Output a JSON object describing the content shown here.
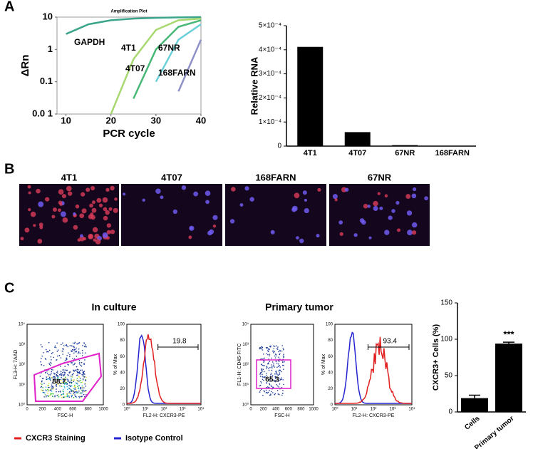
{
  "panel_labels": [
    "A",
    "B",
    "C"
  ],
  "chart_data": [
    {
      "type": "line",
      "title": "Amplification Plot",
      "ylabel": "ΔRn",
      "xlabel": "PCR cycle",
      "x": [
        10,
        15,
        20,
        25,
        30,
        35,
        40
      ],
      "xlim": [
        8,
        40
      ],
      "xticks": [
        10,
        20,
        30,
        40
      ],
      "ylim": [
        0.01,
        10
      ],
      "log_y": true,
      "yticks": [
        10,
        1,
        0.1,
        {
          "value": 0.01,
          "label": "0.0 1"
        }
      ],
      "series": [
        {
          "name": "GAPDH",
          "color": "#3aa58a",
          "values": [
            3,
            6,
            8,
            9,
            9.5,
            9.8,
            10
          ]
        },
        {
          "name": "4T1",
          "color": "#a8d870",
          "values": [
            null,
            null,
            0.01,
            0.5,
            4,
            8,
            9
          ]
        },
        {
          "name": "4T07",
          "color": "#48b878",
          "values": [
            null,
            null,
            null,
            0.03,
            1,
            5,
            8
          ]
        },
        {
          "name": "67NR",
          "color": "#6ad0d8",
          "values": [
            null,
            null,
            null,
            null,
            0.1,
            2,
            6
          ]
        },
        {
          "name": "168FARN",
          "color": "#8e90c8",
          "values": [
            null,
            null,
            null,
            null,
            null,
            0.05,
            2
          ]
        }
      ]
    },
    {
      "type": "bar",
      "ylabel": "Relative RNA",
      "categories": [
        "4T1",
        "4T07",
        "67NR",
        "168FARN"
      ],
      "values": [
        0.000412,
        5.8e-05,
        4e-06,
        1e-06
      ],
      "color": "#000000",
      "ylim": [
        0,
        0.0005
      ],
      "yticks": [
        0,
        {
          "value": 0.0001,
          "label": "1×10⁻⁴"
        },
        {
          "value": 0.0002,
          "label": "2×10⁻⁴"
        },
        {
          "value": 0.0003,
          "label": "3×10⁻⁴"
        },
        {
          "value": 0.0004,
          "label": "4×10⁻⁴"
        },
        {
          "value": 0.0005,
          "label": "5×10⁻⁴"
        }
      ]
    },
    {
      "type": "bar",
      "ylabel": "CXCR3+ Cells (%)",
      "categories": [
        "Cells",
        "Primary tumor"
      ],
      "values": [
        19,
        94
      ],
      "errors": [
        4,
        2
      ],
      "color": "#000000",
      "annotation": "***",
      "ylim": [
        0,
        150
      ],
      "yticks": [
        0,
        50,
        100,
        150
      ]
    }
  ],
  "microscopy": {
    "labels": [
      "4T1",
      "4T07",
      "168FARN",
      "67NR"
    ]
  },
  "flow": {
    "section_titles": [
      "In culture",
      "Primary tumor"
    ],
    "plots": [
      {
        "kind": "scatter",
        "ylabel": "FL3-H: 7AAD",
        "xlabel": "FSC-H",
        "xticks": [
          "0",
          "200",
          "400",
          "600",
          "800",
          "1000"
        ],
        "yticks": [
          "10⁰",
          "10¹",
          "10²",
          "10³",
          "10⁴"
        ],
        "gate": "88.7"
      },
      {
        "kind": "histogram",
        "ylabel": "% of Max",
        "xlabel": "FL2-H: CXCR3-PE",
        "xticks": [
          "10⁰",
          "10¹",
          "10²",
          "10³",
          "10⁴"
        ],
        "yticks": [
          "0",
          "20",
          "40",
          "60",
          "80",
          "100"
        ],
        "gate": "19.8"
      },
      {
        "kind": "scatter",
        "ylabel": "FL1-H: CD45-FITC",
        "xlabel": "FSC-H",
        "xticks": [
          "0",
          "200",
          "400",
          "600",
          "800",
          "1000"
        ],
        "yticks": [
          "10⁰",
          "10¹",
          "10²",
          "10³",
          "10⁴"
        ],
        "gate": "65.3"
      },
      {
        "kind": "histogram",
        "ylabel": "% of Max",
        "xlabel": "FL2-H: CXCR3-PE",
        "xticks": [
          "10⁰",
          "10¹",
          "10²",
          "10³",
          "10⁴"
        ],
        "yticks": [
          "0",
          "20",
          "40",
          "60",
          "80",
          "100"
        ],
        "gate": "93.4"
      }
    ],
    "legend": [
      {
        "name": "CXCR3 Staining",
        "color": "#e02020"
      },
      {
        "name": "Isotype Control",
        "color": "#2424d0"
      }
    ]
  }
}
